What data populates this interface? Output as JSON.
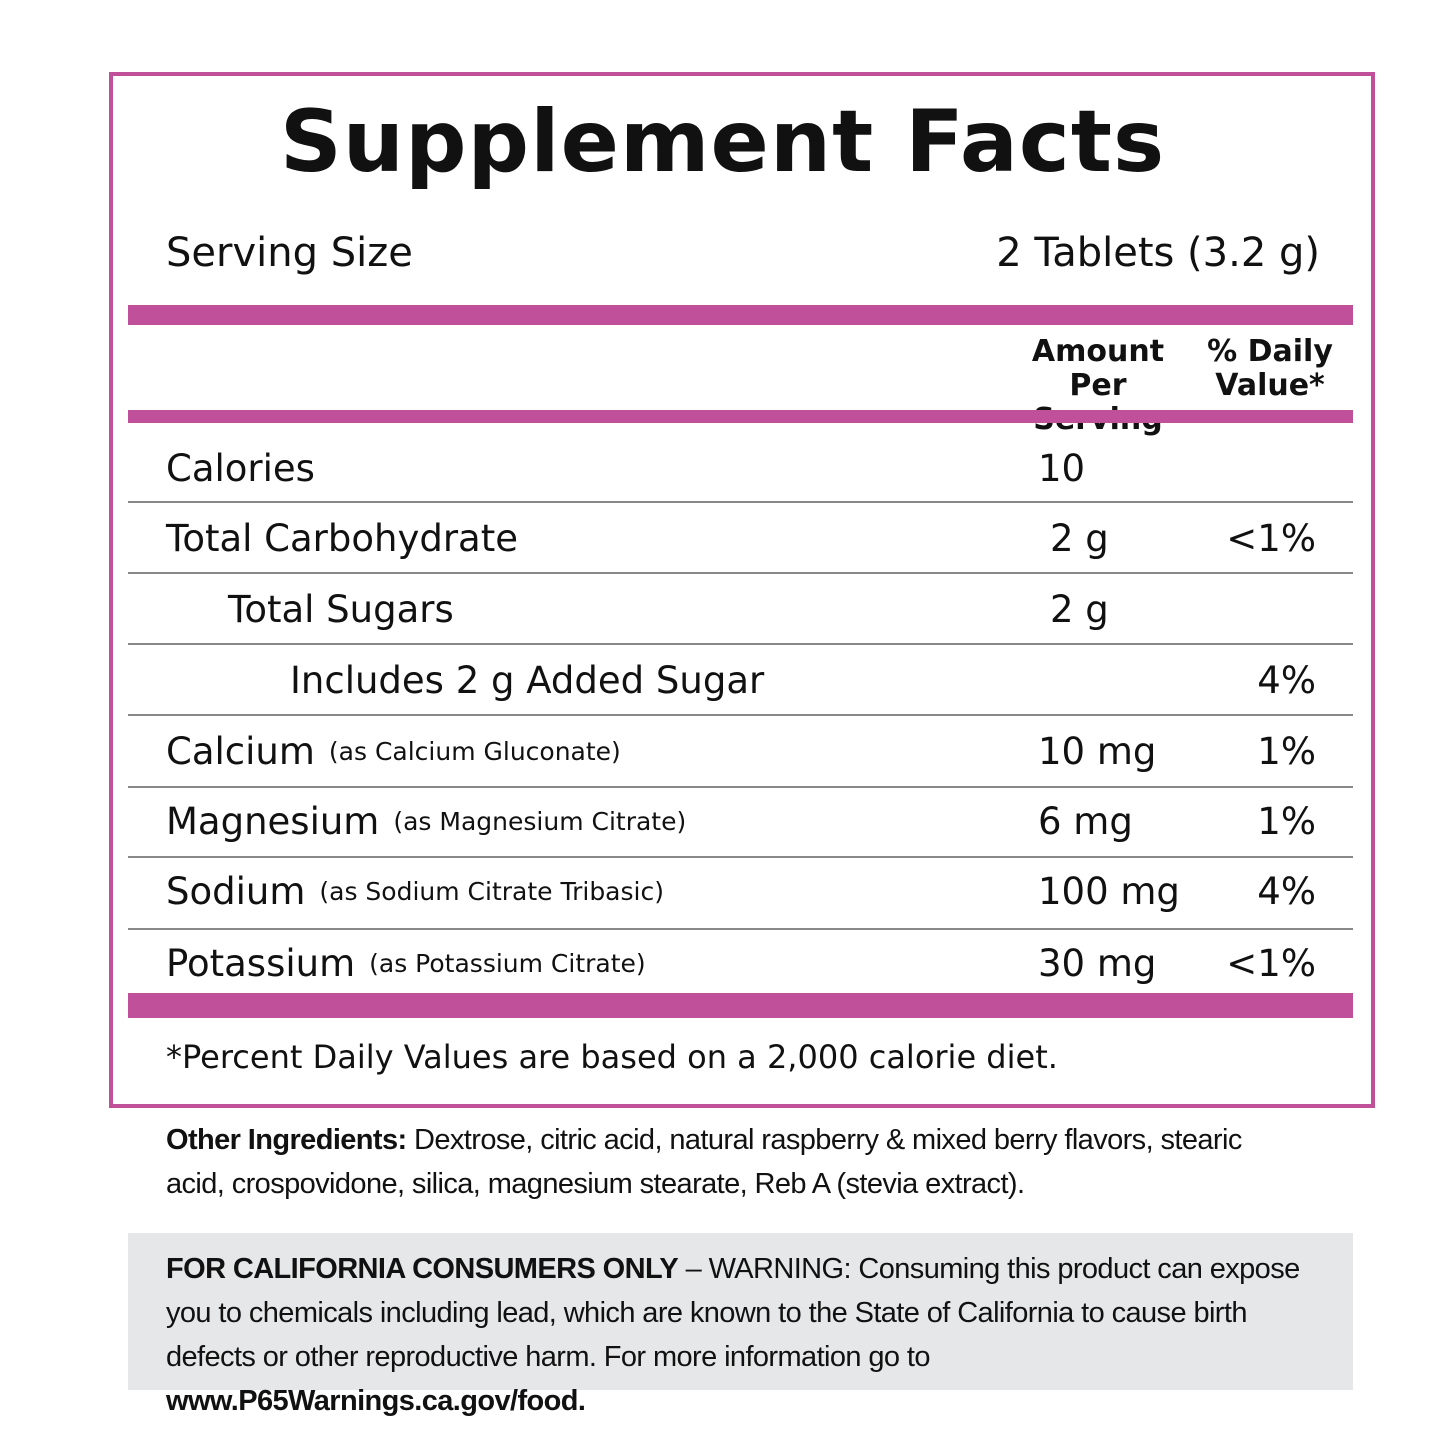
{
  "title": "Supplement Facts",
  "serving_size": {
    "label": "Serving Size",
    "value": "2 Tablets (3.2 g)"
  },
  "header": {
    "amount": [
      "Amount",
      "Per Serving"
    ],
    "daily_value": [
      "% Daily",
      "Value*"
    ]
  },
  "rows": [
    {
      "name": "Calories",
      "amount": "10"
    },
    {
      "name": "Total Carbohydrate",
      "amount": "2 g",
      "daily_value": "<1%"
    },
    {
      "name": "Total Sugars",
      "amount": "2 g"
    },
    {
      "name": "Includes 2 g Added Sugar",
      "daily_value": "4%"
    },
    {
      "name": "Calcium",
      "source": "(as Calcium Gluconate)",
      "amount": "10 mg",
      "daily_value": "1%"
    },
    {
      "name": "Magnesium",
      "source": "(as Magnesium Citrate)",
      "amount": "6 mg",
      "daily_value": "1%"
    },
    {
      "name": "Sodium",
      "source": "(as Sodium Citrate Tribasic)",
      "amount": "100 mg",
      "daily_value": "4%"
    },
    {
      "name": "Potassium",
      "source": "(as Potassium Citrate)",
      "amount": "30 mg",
      "daily_value": "<1%"
    }
  ],
  "footnote": "*Percent Daily Values are based on a 2,000 calorie diet.",
  "other_ingredients": {
    "label": "Other Ingredients:",
    "text": "Dextrose, citric acid, natural raspberry & mixed berry flavors, stearic acid, crospovidone, silica, magnesium stearate, Reb A (stevia extract)."
  },
  "warning": {
    "label": "FOR CALIFORNIA CONSUMERS ONLY",
    "text": "– WARNING: Consuming this product can expose you to chemicals including lead, which are known to the State of California to cause birth defects or other reproductive harm. For more information go to",
    "link": "www.P65Warnings.ca.gov/food."
  }
}
